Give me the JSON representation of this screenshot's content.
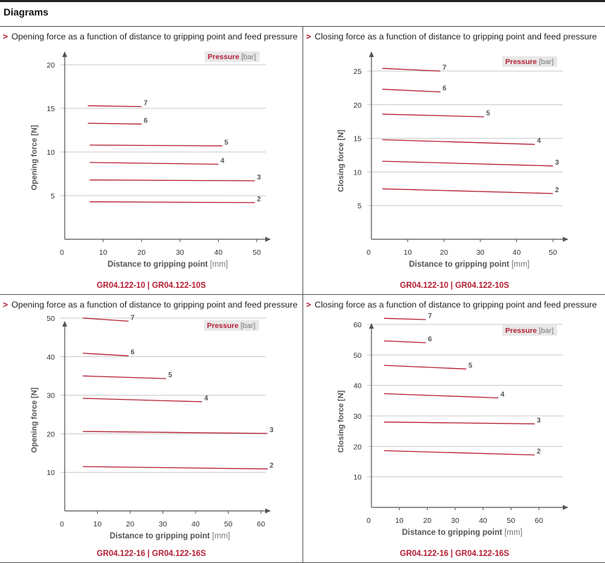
{
  "header": {
    "title": "Diagrams"
  },
  "colors": {
    "accent": "#b51f35",
    "axis": "#555555",
    "grid": "#c8c8c8"
  },
  "panels": [
    {
      "title": "Opening force as a function of distance to gripping point and feed pressure",
      "footer": "GR04.122-10 | GR04.122-10S",
      "legend": {
        "label": "Pressure",
        "unit": "[bar]"
      },
      "chart_data": {
        "type": "line",
        "xlabel": "Distance to gripping point",
        "xunit": "[mm]",
        "ylabel": "Opening force [N]",
        "xlim": [
          0,
          55
        ],
        "ylim": [
          0,
          20.5
        ],
        "xticks": [
          "0",
          "10",
          "20",
          "30",
          "40",
          "50"
        ],
        "yticks": [
          "5",
          "10",
          "15",
          "20"
        ],
        "series": [
          {
            "name": "2",
            "x": [
              6.5,
              49.5
            ],
            "y": [
              4.3,
              4.2
            ]
          },
          {
            "name": "3",
            "x": [
              6.5,
              49.5
            ],
            "y": [
              6.8,
              6.7
            ]
          },
          {
            "name": "4",
            "x": [
              6.5,
              40
            ],
            "y": [
              8.8,
              8.6
            ]
          },
          {
            "name": "5",
            "x": [
              6.5,
              41
            ],
            "y": [
              10.8,
              10.7
            ]
          },
          {
            "name": "6",
            "x": [
              6,
              20
            ],
            "y": [
              13.3,
              13.2
            ]
          },
          {
            "name": "7",
            "x": [
              6,
              20
            ],
            "y": [
              15.3,
              15.2
            ]
          }
        ]
      }
    },
    {
      "title": "Closing force as a function of distance to gripping point and feed pressure",
      "footer": "GR04.122-10 | GR04.122-10S",
      "legend": {
        "label": "Pressure",
        "unit": "[bar]"
      },
      "chart_data": {
        "type": "line",
        "xlabel": "Distance to gripping point",
        "xunit": "[mm]",
        "ylabel": "Closing force [N]",
        "xlim": [
          0,
          55
        ],
        "ylim": [
          0,
          27
        ],
        "xticks": [
          "0",
          "10",
          "20",
          "30",
          "40",
          "50"
        ],
        "yticks": [
          "5",
          "10",
          "15",
          "20",
          "25"
        ],
        "series": [
          {
            "name": "2",
            "x": [
              3,
              50
            ],
            "y": [
              7.5,
              6.8
            ]
          },
          {
            "name": "3",
            "x": [
              3,
              50
            ],
            "y": [
              11.6,
              10.9
            ]
          },
          {
            "name": "4",
            "x": [
              3,
              45
            ],
            "y": [
              14.8,
              14.1
            ]
          },
          {
            "name": "5",
            "x": [
              3,
              31
            ],
            "y": [
              18.6,
              18.2
            ]
          },
          {
            "name": "6",
            "x": [
              3,
              19
            ],
            "y": [
              22.3,
              21.9
            ]
          },
          {
            "name": "7",
            "x": [
              3,
              19
            ],
            "y": [
              25.4,
              25.0
            ]
          }
        ]
      }
    },
    {
      "title": "Opening force as a function of distance to gripping point and feed pressure",
      "footer": "GR04.122-16 | GR04.122-16S",
      "legend": {
        "label": "Pressure",
        "unit": "[bar]"
      },
      "chart_data": {
        "type": "line",
        "xlabel": "Distance to gripping point",
        "xunit": "[mm]",
        "ylabel": "Opening force [N]",
        "xlim": [
          0,
          63
        ],
        "ylim": [
          0,
          54
        ],
        "xticks": [
          "0",
          "10",
          "20",
          "30",
          "40",
          "50",
          "60"
        ],
        "yticks": [
          "10",
          "20",
          "30",
          "40",
          "50"
        ],
        "series": [
          {
            "name": "2",
            "x": [
              5.5,
              62
            ],
            "y": [
              11.5,
              10.9
            ]
          },
          {
            "name": "3",
            "x": [
              5.5,
              62
            ],
            "y": [
              20.6,
              20.1
            ]
          },
          {
            "name": "4",
            "x": [
              5.5,
              42
            ],
            "y": [
              29.2,
              28.3
            ]
          },
          {
            "name": "5",
            "x": [
              5.5,
              31
            ],
            "y": [
              35.0,
              34.3
            ]
          },
          {
            "name": "6",
            "x": [
              5.5,
              19.5
            ],
            "y": [
              40.9,
              40.2
            ]
          },
          {
            "name": "7",
            "x": [
              5.5,
              19.5
            ],
            "y": [
              50.0,
              49.2
            ]
          }
        ]
      }
    },
    {
      "title": "Closing force as a function of distance to gripping point and feed pressure",
      "footer": "GR04.122-16 | GR04.122-16S",
      "legend": {
        "label": "Pressure",
        "unit": "[bar]"
      },
      "chart_data": {
        "type": "line",
        "xlabel": "Distance to gripping point",
        "xunit": "[mm]",
        "ylabel": "Closing force [N]",
        "xlim": [
          0,
          68
        ],
        "ylim": [
          0,
          68
        ],
        "xticks": [
          "0",
          "10",
          "20",
          "30",
          "40",
          "50",
          "60"
        ],
        "yticks": [
          "10",
          "20",
          "30",
          "40",
          "50",
          "60"
        ],
        "series": [
          {
            "name": "2",
            "x": [
              4.5,
              58.5
            ],
            "y": [
              18.6,
              17.2
            ]
          },
          {
            "name": "3",
            "x": [
              4.5,
              58.5
            ],
            "y": [
              28.0,
              27.4
            ]
          },
          {
            "name": "4",
            "x": [
              4.5,
              45.5
            ],
            "y": [
              37.3,
              35.9
            ]
          },
          {
            "name": "5",
            "x": [
              4.5,
              34
            ],
            "y": [
              46.6,
              45.4
            ]
          },
          {
            "name": "6",
            "x": [
              4.5,
              19.5
            ],
            "y": [
              54.6,
              54.0
            ]
          },
          {
            "name": "7",
            "x": [
              4.5,
              19.5
            ],
            "y": [
              62.0,
              61.6
            ]
          }
        ]
      }
    }
  ]
}
